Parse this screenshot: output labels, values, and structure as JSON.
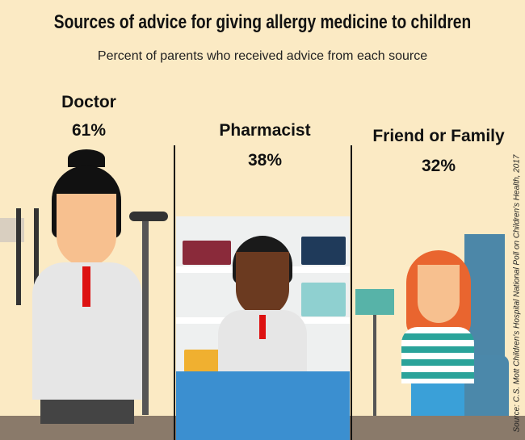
{
  "title": "Sources of advice for giving allergy medicine to children",
  "subtitle": "Percent of parents who received advice from each source",
  "sources": [
    {
      "label": "Doctor",
      "value": "61%"
    },
    {
      "label": "Pharmacist",
      "value": "38%"
    },
    {
      "label": "Friend or Family",
      "value": "32%"
    }
  ],
  "source_note": "Source: C.S. Mott Children's Hospital National Poll on Children's Health, 2017",
  "colors": {
    "background": "#fbeac4",
    "counter": "#3b8fd0",
    "skin": "#f7c08f",
    "hair_red": "#e9652f"
  }
}
